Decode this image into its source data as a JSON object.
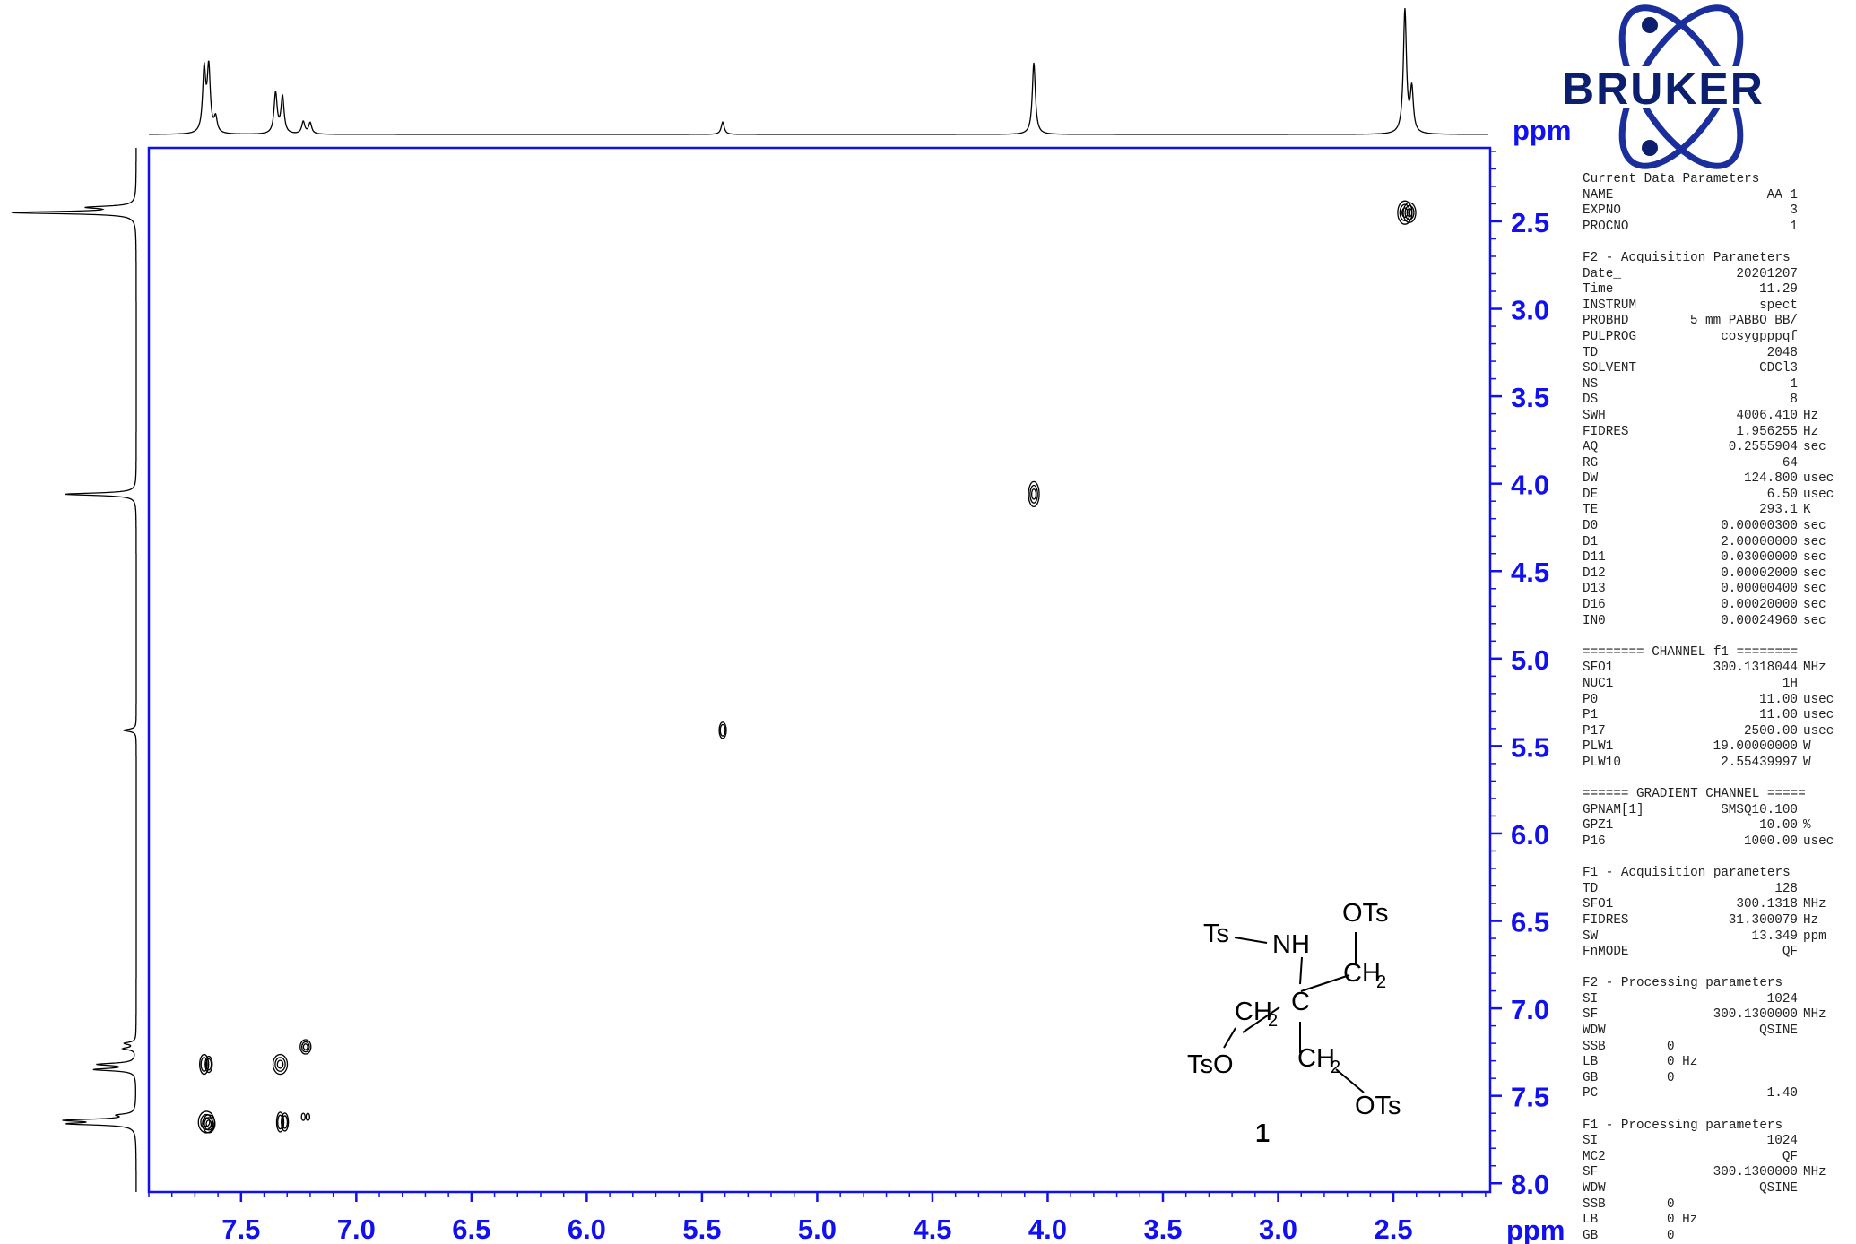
{
  "brand": {
    "name": "BRUKER"
  },
  "chart_data": {
    "type": "2D NMR COSY contour",
    "f2_axis": {
      "unit": "ppm",
      "range": [
        7.9,
        2.08
      ],
      "ticks": [
        "7.5",
        "7.0",
        "6.5",
        "6.0",
        "5.5",
        "5.0",
        "4.5",
        "4.0",
        "3.5",
        "3.0",
        "2.5"
      ]
    },
    "f1_axis": {
      "unit": "ppm",
      "range": [
        2.08,
        8.05
      ],
      "ticks": [
        "2.5",
        "3.0",
        "3.5",
        "4.0",
        "4.5",
        "5.0",
        "5.5",
        "6.0",
        "6.5",
        "7.0",
        "7.5",
        "8.0"
      ]
    },
    "projection_peaks": [
      {
        "ppm": 7.66,
        "height": 0.5
      },
      {
        "ppm": 7.64,
        "height": 0.52
      },
      {
        "ppm": 7.61,
        "height": 0.12
      },
      {
        "ppm": 7.35,
        "height": 0.33
      },
      {
        "ppm": 7.32,
        "height": 0.3
      },
      {
        "ppm": 7.23,
        "height": 0.1
      },
      {
        "ppm": 7.2,
        "height": 0.09
      },
      {
        "ppm": 5.41,
        "height": 0.1
      },
      {
        "ppm": 4.06,
        "height": 0.58
      },
      {
        "ppm": 2.45,
        "height": 1.0
      },
      {
        "ppm": 2.42,
        "height": 0.35
      }
    ],
    "cross_peaks": [
      {
        "f2": 2.45,
        "f1": 2.45,
        "rx": 8,
        "ry": 13
      },
      {
        "f2": 2.43,
        "f1": 2.45,
        "rx": 7,
        "ry": 11
      },
      {
        "f2": 4.06,
        "f1": 4.06,
        "rx": 6,
        "ry": 14
      },
      {
        "f2": 5.41,
        "f1": 5.41,
        "rx": 4,
        "ry": 9
      },
      {
        "f2": 7.66,
        "f1": 7.32,
        "rx": 5,
        "ry": 11
      },
      {
        "f2": 7.64,
        "f1": 7.32,
        "rx": 4,
        "ry": 9
      },
      {
        "f2": 7.33,
        "f1": 7.32,
        "rx": 8,
        "ry": 11
      },
      {
        "f2": 7.22,
        "f1": 7.22,
        "rx": 6,
        "ry": 8
      },
      {
        "f2": 7.65,
        "f1": 7.65,
        "rx": 9,
        "ry": 12
      },
      {
        "f2": 7.64,
        "f1": 7.66,
        "rx": 7,
        "ry": 10
      },
      {
        "f2": 7.33,
        "f1": 7.65,
        "rx": 4,
        "ry": 11
      },
      {
        "f2": 7.31,
        "f1": 7.65,
        "rx": 4,
        "ry": 10
      },
      {
        "f2": 7.23,
        "f1": 7.62,
        "rx": 2,
        "ry": 4
      },
      {
        "f2": 7.21,
        "f1": 7.62,
        "rx": 2,
        "ry": 4
      }
    ]
  },
  "molecule": {
    "ts": "Ts",
    "nh": "NH",
    "ots_top": "OTs",
    "ch2_a": "CH",
    "ch2_b": "CH",
    "ch2_c": "CH",
    "sub2": "2",
    "c": "C",
    "tso": "TsO",
    "ots_bottom": "OTs",
    "number": "1"
  },
  "params": [
    {
      "type": "section",
      "text": "Current Data Parameters"
    },
    {
      "type": "row",
      "label": "NAME",
      "value": "AA 1",
      "unit": ""
    },
    {
      "type": "row",
      "label": "EXPNO",
      "value": "3",
      "unit": ""
    },
    {
      "type": "row",
      "label": "PROCNO",
      "value": "1",
      "unit": ""
    },
    {
      "type": "gap"
    },
    {
      "type": "section",
      "text": "F2 - Acquisition Parameters"
    },
    {
      "type": "row",
      "label": "Date_",
      "value": "20201207",
      "unit": ""
    },
    {
      "type": "row",
      "label": "Time",
      "value": "11.29",
      "unit": ""
    },
    {
      "type": "row",
      "label": "INSTRUM",
      "value": "spect",
      "unit": ""
    },
    {
      "type": "row",
      "label": "PROBHD",
      "value": "5 mm PABBO BB/",
      "unit": ""
    },
    {
      "type": "row",
      "label": "PULPROG",
      "value": "cosygpppqf",
      "unit": ""
    },
    {
      "type": "row",
      "label": "TD",
      "value": "2048",
      "unit": ""
    },
    {
      "type": "row",
      "label": "SOLVENT",
      "value": "CDCl3",
      "unit": ""
    },
    {
      "type": "row",
      "label": "NS",
      "value": "1",
      "unit": ""
    },
    {
      "type": "row",
      "label": "DS",
      "value": "8",
      "unit": ""
    },
    {
      "type": "row",
      "label": "SWH",
      "value": "4006.410",
      "unit": "Hz"
    },
    {
      "type": "row",
      "label": "FIDRES",
      "value": "1.956255",
      "unit": "Hz"
    },
    {
      "type": "row",
      "label": "AQ",
      "value": "0.2555904",
      "unit": "sec"
    },
    {
      "type": "row",
      "label": "RG",
      "value": "64",
      "unit": ""
    },
    {
      "type": "row",
      "label": "DW",
      "value": "124.800",
      "unit": "usec"
    },
    {
      "type": "row",
      "label": "DE",
      "value": "6.50",
      "unit": "usec"
    },
    {
      "type": "row",
      "label": "TE",
      "value": "293.1",
      "unit": "K"
    },
    {
      "type": "row",
      "label": "D0",
      "value": "0.00000300",
      "unit": "sec"
    },
    {
      "type": "row",
      "label": "D1",
      "value": "2.00000000",
      "unit": "sec"
    },
    {
      "type": "row",
      "label": "D11",
      "value": "0.03000000",
      "unit": "sec"
    },
    {
      "type": "row",
      "label": "D12",
      "value": "0.00002000",
      "unit": "sec"
    },
    {
      "type": "row",
      "label": "D13",
      "value": "0.00000400",
      "unit": "sec"
    },
    {
      "type": "row",
      "label": "D16",
      "value": "0.00020000",
      "unit": "sec"
    },
    {
      "type": "row",
      "label": "IN0",
      "value": "0.00024960",
      "unit": "sec"
    },
    {
      "type": "gap"
    },
    {
      "type": "section",
      "text": "======== CHANNEL f1 ========"
    },
    {
      "type": "row",
      "label": "SFO1",
      "value": "300.1318044",
      "unit": "MHz"
    },
    {
      "type": "row",
      "label": "NUC1",
      "value": "1H",
      "unit": ""
    },
    {
      "type": "row",
      "label": "P0",
      "value": "11.00",
      "unit": "usec"
    },
    {
      "type": "row",
      "label": "P1",
      "value": "11.00",
      "unit": "usec"
    },
    {
      "type": "row",
      "label": "P17",
      "value": "2500.00",
      "unit": "usec"
    },
    {
      "type": "row",
      "label": "PLW1",
      "value": "19.00000000",
      "unit": "W"
    },
    {
      "type": "row",
      "label": "PLW10",
      "value": "2.55439997",
      "unit": "W"
    },
    {
      "type": "gap"
    },
    {
      "type": "section",
      "text": "====== GRADIENT CHANNEL ====="
    },
    {
      "type": "row",
      "label": "GPNAM[1]",
      "value": "SMSQ10.100",
      "unit": ""
    },
    {
      "type": "row",
      "label": "GPZ1",
      "value": "10.00",
      "unit": "%"
    },
    {
      "type": "row",
      "label": "P16",
      "value": "1000.00",
      "unit": "usec"
    },
    {
      "type": "gap"
    },
    {
      "type": "section",
      "text": "F1 - Acquisition parameters"
    },
    {
      "type": "row",
      "label": "TD",
      "value": "128",
      "unit": ""
    },
    {
      "type": "row",
      "label": "SFO1",
      "value": "300.1318",
      "unit": "MHz"
    },
    {
      "type": "row",
      "label": "FIDRES",
      "value": "31.300079",
      "unit": "Hz"
    },
    {
      "type": "row",
      "label": "SW",
      "value": "13.349",
      "unit": "ppm"
    },
    {
      "type": "row",
      "label": "FnMODE",
      "value": "QF",
      "unit": ""
    },
    {
      "type": "gap"
    },
    {
      "type": "section",
      "text": "F2 - Processing parameters"
    },
    {
      "type": "row",
      "label": "SI",
      "value": "1024",
      "unit": ""
    },
    {
      "type": "row",
      "label": "SF",
      "value": "300.1300000",
      "unit": "MHz"
    },
    {
      "type": "row",
      "label": "WDW",
      "value": "QSINE",
      "unit": ""
    },
    {
      "type": "row",
      "label": "SSB",
      "value": "0",
      "unit": "",
      "left": true
    },
    {
      "type": "row",
      "label": "LB",
      "value": "0 Hz",
      "unit": "",
      "left": true
    },
    {
      "type": "row",
      "label": "GB",
      "value": "0",
      "unit": "",
      "left": true
    },
    {
      "type": "row",
      "label": "PC",
      "value": "1.40",
      "unit": ""
    },
    {
      "type": "gap"
    },
    {
      "type": "section",
      "text": "F1 - Processing parameters"
    },
    {
      "type": "row",
      "label": "SI",
      "value": "1024",
      "unit": ""
    },
    {
      "type": "row",
      "label": "MC2",
      "value": "QF",
      "unit": ""
    },
    {
      "type": "row",
      "label": "SF",
      "value": "300.1300000",
      "unit": "MHz"
    },
    {
      "type": "row",
      "label": "WDW",
      "value": "QSINE",
      "unit": ""
    },
    {
      "type": "row",
      "label": "SSB",
      "value": "0",
      "unit": "",
      "left": true
    },
    {
      "type": "row",
      "label": "LB",
      "value": "0 Hz",
      "unit": "",
      "left": true
    },
    {
      "type": "row",
      "label": "GB",
      "value": "0",
      "unit": "",
      "left": true
    }
  ]
}
